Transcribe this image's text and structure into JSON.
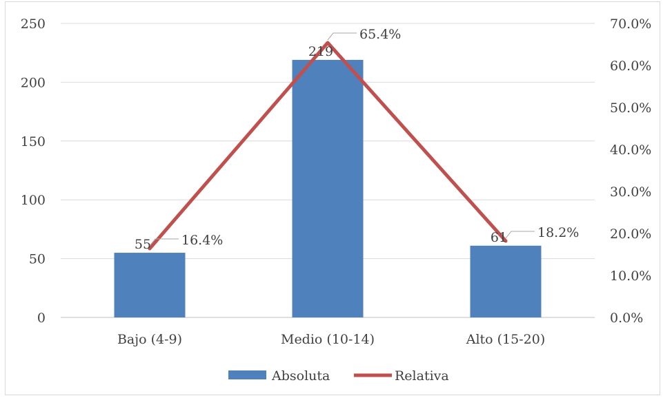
{
  "chart_data": {
    "type": "bar",
    "categories": [
      "Bajo (4-9)",
      "Medio (10-14)",
      "Alto (15-20)"
    ],
    "series": [
      {
        "name": "Absoluta",
        "type": "bar",
        "axis": "left",
        "values": [
          55,
          219,
          61
        ],
        "labels": [
          "55",
          "219",
          "61"
        ],
        "color": "#4f81bd"
      },
      {
        "name": "Relativa",
        "type": "line",
        "axis": "right",
        "values": [
          16.4,
          65.4,
          18.2
        ],
        "labels": [
          "16.4%",
          "65.4%",
          "18.2%"
        ],
        "color": "#c0504d"
      }
    ],
    "y_left": {
      "min": 0,
      "max": 250,
      "ticks": [
        "0",
        "50",
        "100",
        "150",
        "200",
        "250"
      ]
    },
    "y_right": {
      "min": 0,
      "max": 70,
      "ticks": [
        "0.0%",
        "10.0%",
        "20.0%",
        "30.0%",
        "40.0%",
        "50.0%",
        "60.0%",
        "70.0%"
      ]
    },
    "grid": true,
    "legend_position": "bottom"
  }
}
